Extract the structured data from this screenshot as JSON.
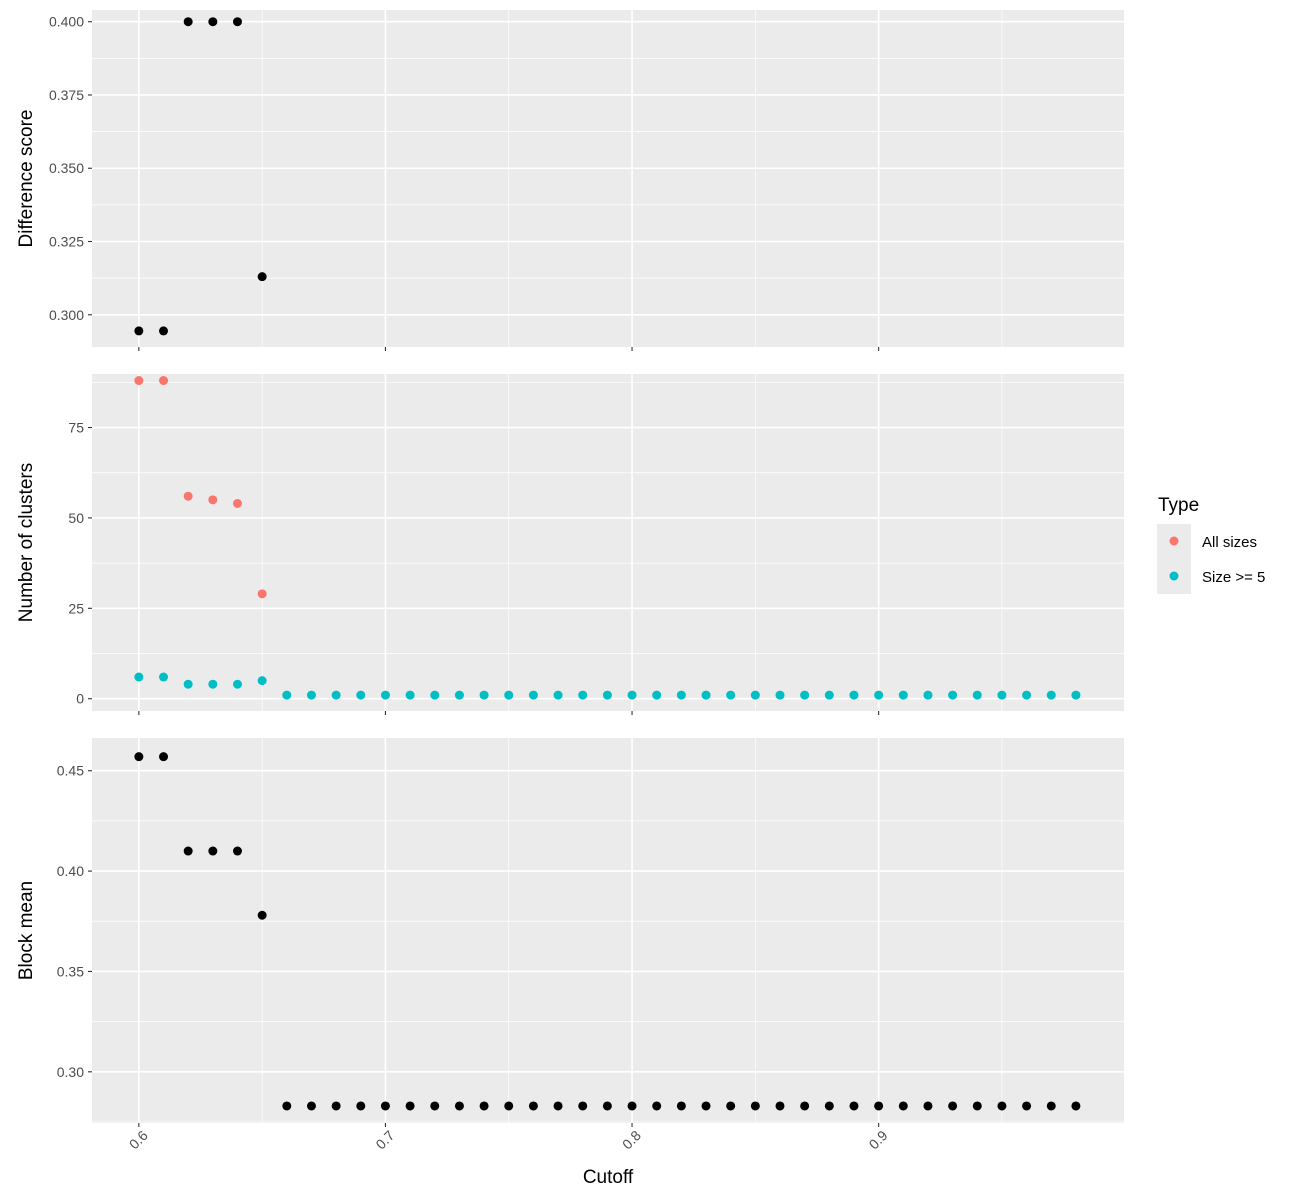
{
  "chart_data": {
    "type": "scatter",
    "x_axis": {
      "label": "Cutoff",
      "range": [
        0.581,
        0.9995
      ],
      "ticks": [
        "0.6",
        "0.7",
        "0.8",
        "0.9"
      ],
      "tick_values": [
        0.6,
        0.7,
        0.8,
        0.9
      ]
    },
    "grid": true,
    "facets": [
      {
        "id": "difference",
        "ylabel": "Difference score",
        "ylim": [
          0.289,
          0.404
        ],
        "y_ticks": [
          "0.300",
          "0.325",
          "0.350",
          "0.375",
          "0.400"
        ],
        "y_tick_values": [
          0.3,
          0.325,
          0.35,
          0.375,
          0.4
        ],
        "series": [
          {
            "color": "#000000",
            "x": [
              0.6,
              0.61,
              0.62,
              0.63,
              0.64,
              0.65
            ],
            "y": [
              0.2945,
              0.2945,
              0.4,
              0.4,
              0.4,
              0.313
            ]
          }
        ]
      },
      {
        "id": "clusters",
        "ylabel": "Number of clusters",
        "ylim": [
          -3.4,
          89.8
        ],
        "y_ticks": [
          "0",
          "25",
          "50",
          "75"
        ],
        "y_tick_values": [
          0,
          25,
          50,
          75
        ],
        "series": [
          {
            "name": "All sizes",
            "color": "#F8766D",
            "x": [
              0.6,
              0.61,
              0.62,
              0.63,
              0.64,
              0.65
            ],
            "y": [
              88,
              88,
              56,
              55,
              54,
              29
            ]
          },
          {
            "name": "Size >= 5",
            "color": "#00BFC4",
            "x": [
              0.6,
              0.61,
              0.62,
              0.63,
              0.64,
              0.65,
              0.66,
              0.67,
              0.68,
              0.69,
              0.7,
              0.71,
              0.72,
              0.73,
              0.74,
              0.75,
              0.76,
              0.77,
              0.78,
              0.79,
              0.8,
              0.81,
              0.82,
              0.83,
              0.84,
              0.85,
              0.86,
              0.87,
              0.88,
              0.89,
              0.9,
              0.91,
              0.92,
              0.93,
              0.94,
              0.95,
              0.96,
              0.97,
              0.98
            ],
            "y": [
              6,
              6,
              4,
              4,
              4,
              5,
              1,
              1,
              1,
              1,
              1,
              1,
              1,
              1,
              1,
              1,
              1,
              1,
              1,
              1,
              1,
              1,
              1,
              1,
              1,
              1,
              1,
              1,
              1,
              1,
              1,
              1,
              1,
              1,
              1,
              1,
              1,
              1,
              1
            ]
          }
        ]
      },
      {
        "id": "blockmean",
        "ylabel": "Block mean",
        "ylim": [
          0.2745,
          0.4663
        ],
        "y_ticks": [
          "0.30",
          "0.35",
          "0.40",
          "0.45"
        ],
        "y_tick_values": [
          0.3,
          0.35,
          0.4,
          0.45
        ],
        "series": [
          {
            "color": "#000000",
            "x": [
              0.6,
              0.61,
              0.62,
              0.63,
              0.64,
              0.65,
              0.66,
              0.67,
              0.68,
              0.69,
              0.7,
              0.71,
              0.72,
              0.73,
              0.74,
              0.75,
              0.76,
              0.77,
              0.78,
              0.79,
              0.8,
              0.81,
              0.82,
              0.83,
              0.84,
              0.85,
              0.86,
              0.87,
              0.88,
              0.89,
              0.9,
              0.91,
              0.92,
              0.93,
              0.94,
              0.95,
              0.96,
              0.97,
              0.98
            ],
            "y": [
              0.457,
              0.457,
              0.41,
              0.41,
              0.41,
              0.378,
              0.283,
              0.283,
              0.283,
              0.283,
              0.283,
              0.283,
              0.283,
              0.283,
              0.283,
              0.283,
              0.283,
              0.283,
              0.283,
              0.283,
              0.283,
              0.283,
              0.283,
              0.283,
              0.283,
              0.283,
              0.283,
              0.283,
              0.283,
              0.283,
              0.283,
              0.283,
              0.283,
              0.283,
              0.283,
              0.283,
              0.283,
              0.283,
              0.283
            ]
          }
        ]
      }
    ],
    "legend": {
      "title": "Type",
      "position": "right",
      "entries": [
        {
          "label": "All sizes",
          "color": "#F8766D"
        },
        {
          "label": "Size >= 5",
          "color": "#00BFC4"
        }
      ]
    },
    "colors": {
      "panel_bg": "#EBEBEB",
      "grid_major": "#FFFFFF",
      "tick_text": "#4D4D4D"
    }
  }
}
